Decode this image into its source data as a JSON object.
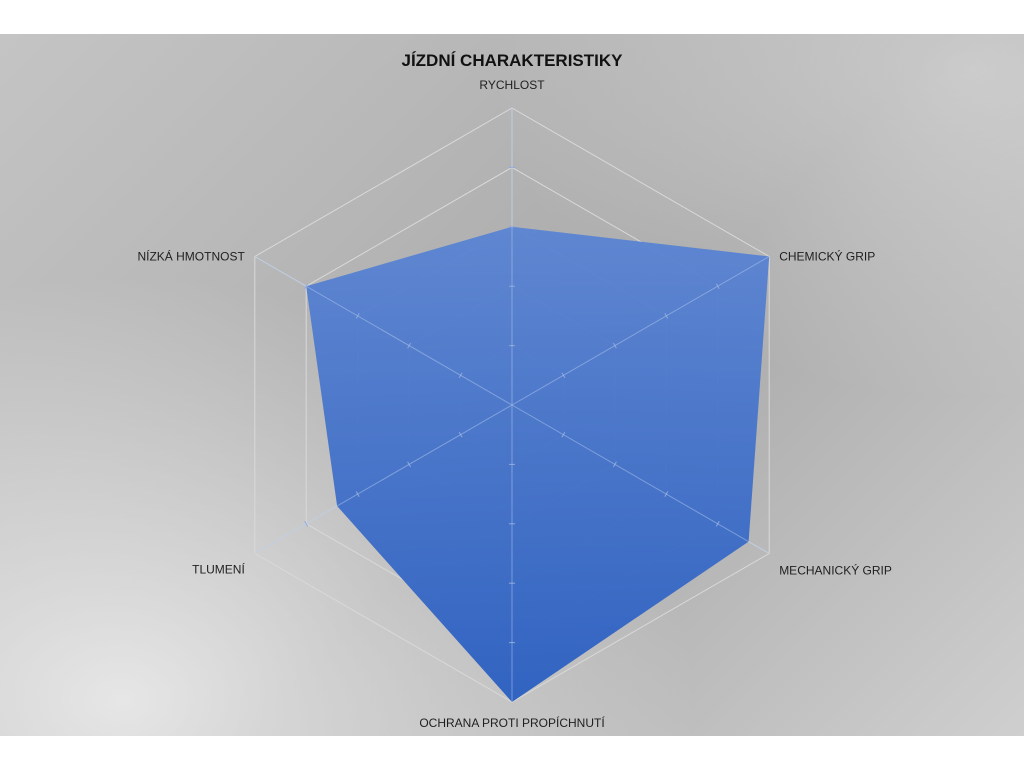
{
  "chart_data": {
    "type": "radar",
    "title": "JÍZDNÍ CHARAKTERISTIKY",
    "categories": [
      "RYCHLOST",
      "CHEMICKÝ GRIP",
      "MECHANICKÝ GRIP",
      "OCHRANA PROTI PROPÍCHNUTÍ",
      "TLUMENÍ",
      "NÍZKÁ HMOTNOST"
    ],
    "series": [
      {
        "values": [
          3,
          5,
          4.6,
          5,
          3.4,
          4
        ]
      }
    ],
    "range": [
      0,
      5
    ],
    "grid_levels": 5,
    "grid": true,
    "legend": "none",
    "fill_color": "#4677cf",
    "grid_color": "#d9d9d9"
  }
}
